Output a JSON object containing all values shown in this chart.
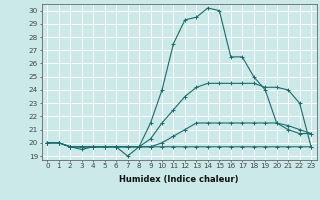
{
  "title": "",
  "xlabel": "Humidex (Indice chaleur)",
  "bg_color": "#cce9e9",
  "grid_color": "#ffffff",
  "line_color": "#1a6b6b",
  "xlim": [
    -0.5,
    23.5
  ],
  "ylim": [
    18.7,
    30.5
  ],
  "yticks": [
    19,
    20,
    21,
    22,
    23,
    24,
    25,
    26,
    27,
    28,
    29,
    30
  ],
  "xticks": [
    0,
    1,
    2,
    3,
    4,
    5,
    6,
    7,
    8,
    9,
    10,
    11,
    12,
    13,
    14,
    15,
    16,
    17,
    18,
    19,
    20,
    21,
    22,
    23
  ],
  "lines": [
    [
      20.0,
      20.0,
      19.7,
      19.5,
      19.7,
      19.7,
      19.7,
      19.0,
      19.7,
      21.5,
      24.0,
      27.5,
      29.3,
      29.5,
      30.2,
      30.0,
      26.5,
      26.5,
      25.0,
      24.0,
      21.5,
      21.0,
      20.7,
      20.7
    ],
    [
      20.0,
      20.0,
      19.7,
      19.7,
      19.7,
      19.7,
      19.7,
      19.7,
      19.7,
      19.7,
      20.0,
      20.5,
      21.0,
      21.5,
      21.5,
      21.5,
      21.5,
      21.5,
      21.5,
      21.5,
      21.5,
      21.3,
      21.0,
      20.7
    ],
    [
      20.0,
      20.0,
      19.7,
      19.7,
      19.7,
      19.7,
      19.7,
      19.7,
      19.7,
      20.3,
      21.5,
      22.5,
      23.5,
      24.2,
      24.5,
      24.5,
      24.5,
      24.5,
      24.5,
      24.2,
      24.2,
      24.0,
      23.0,
      19.7
    ],
    [
      20.0,
      20.0,
      19.7,
      19.7,
      19.7,
      19.7,
      19.7,
      19.7,
      19.7,
      19.7,
      19.7,
      19.7,
      19.7,
      19.7,
      19.7,
      19.7,
      19.7,
      19.7,
      19.7,
      19.7,
      19.7,
      19.7,
      19.7,
      19.7
    ]
  ],
  "xlabel_fontsize": 6.0,
  "tick_fontsize": 5.2
}
